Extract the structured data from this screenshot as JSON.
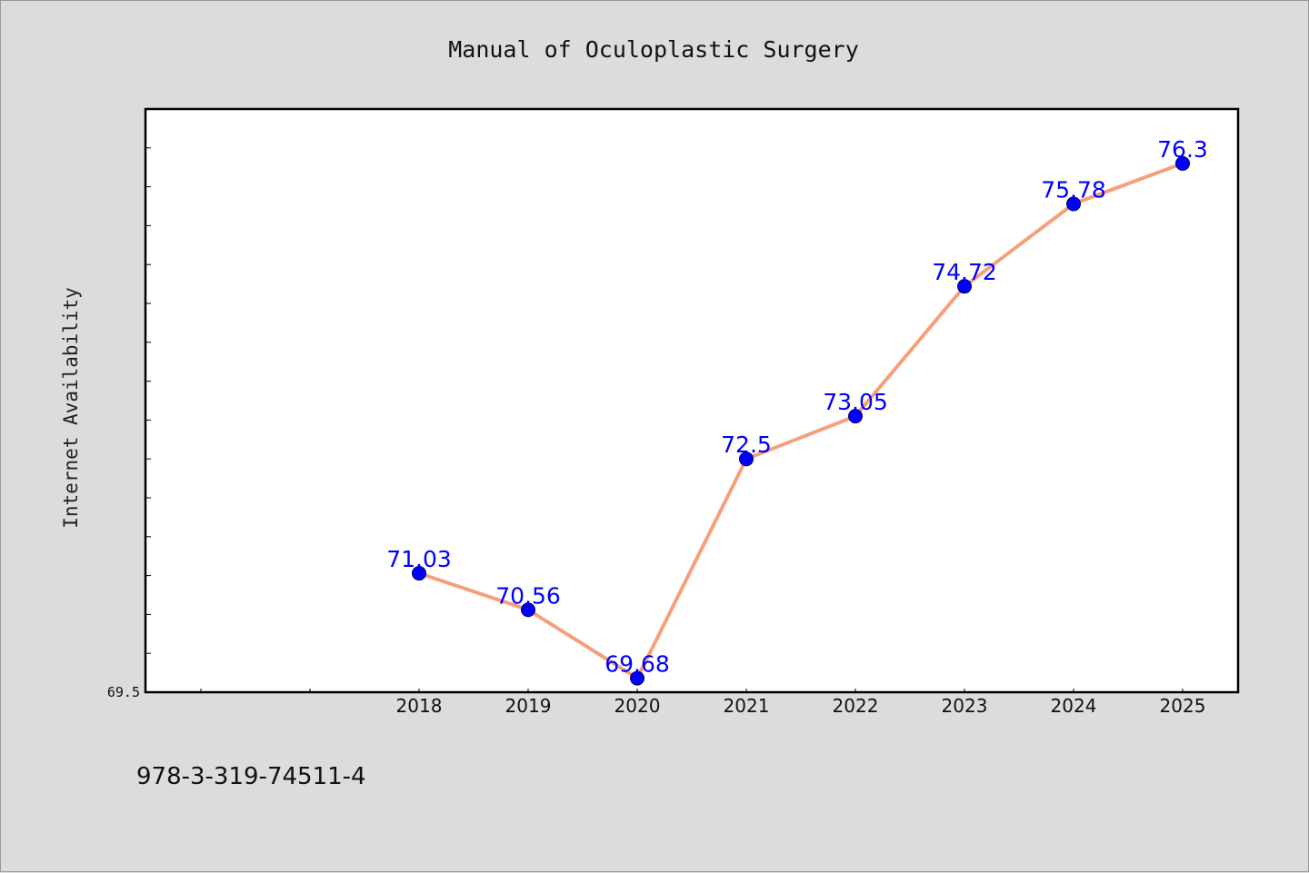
{
  "chart_data": {
    "type": "line",
    "title": "Manual of Oculoplastic Surgery",
    "xlabel": "",
    "ylabel": "Internet Availability",
    "categories": [
      "2018",
      "2019",
      "2020",
      "2021",
      "2022",
      "2023",
      "2024",
      "2025"
    ],
    "series": [
      {
        "values": [
          71.03,
          70.56,
          69.68,
          72.5,
          73.05,
          74.72,
          75.78,
          76.3
        ],
        "data_labels": [
          "71.03",
          "70.56",
          "69.68",
          "72.5",
          "73.05",
          "74.72",
          "75.78",
          "76.3"
        ],
        "line_color": "#f4a07a",
        "marker_color": "#0000ff"
      }
    ],
    "ylim": [
      69.5,
      77.0
    ],
    "y_tick_labels": [
      "69.5"
    ],
    "grid": false,
    "legend": false
  },
  "footer": {
    "isbn": "978-3-319-74511-4"
  }
}
